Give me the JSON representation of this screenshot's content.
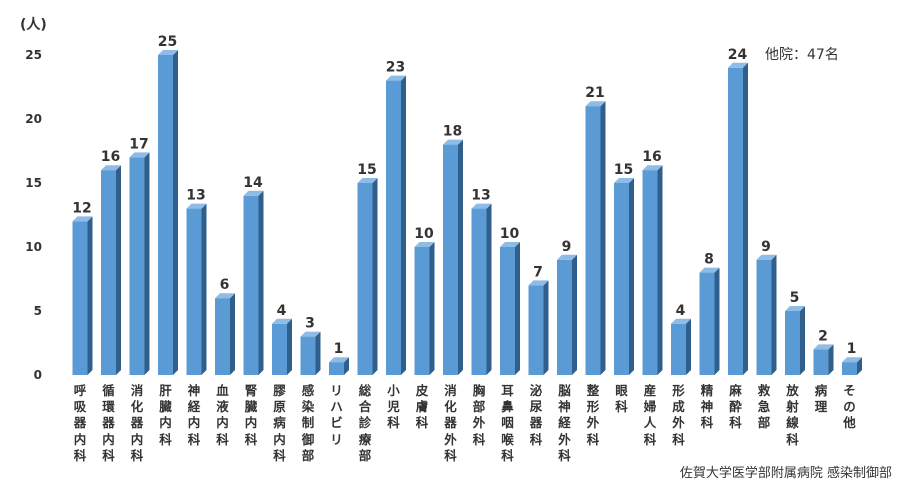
{
  "chart_data": {
    "type": "bar",
    "ylabel": "(人)",
    "ylim": [
      0,
      25
    ],
    "yticks": [
      0,
      5,
      10,
      15,
      20,
      25
    ],
    "grid": false,
    "bar_color": "#5B9BD5",
    "bar_side_color": "#2F5F8A",
    "bar_top_color": "#8FBCE6",
    "categories": [
      "呼吸器内科",
      "循環器内科",
      "消化器内科",
      "肝臓内科",
      "神経内科",
      "血液内科",
      "腎臓内科",
      "膠原病内科",
      "感染制御部",
      "リハビリ",
      "総合診療部",
      "小児科",
      "皮膚科",
      "消化器外科",
      "胸部外科",
      "耳鼻咽喉科",
      "泌尿器科",
      "脳神経外科",
      "整形外科",
      "眼科",
      "産婦人科",
      "形成外科",
      "精神科",
      "麻酔科",
      "救急部",
      "放射線科",
      "病理",
      "その他"
    ],
    "values": [
      12,
      16,
      17,
      25,
      13,
      6,
      14,
      4,
      3,
      1,
      15,
      23,
      10,
      18,
      13,
      10,
      7,
      9,
      21,
      15,
      16,
      4,
      8,
      24,
      9,
      5,
      2,
      1
    ],
    "annotation": "他院：47名",
    "source": "佐賀大学医学部附属病院 感染制御部"
  }
}
